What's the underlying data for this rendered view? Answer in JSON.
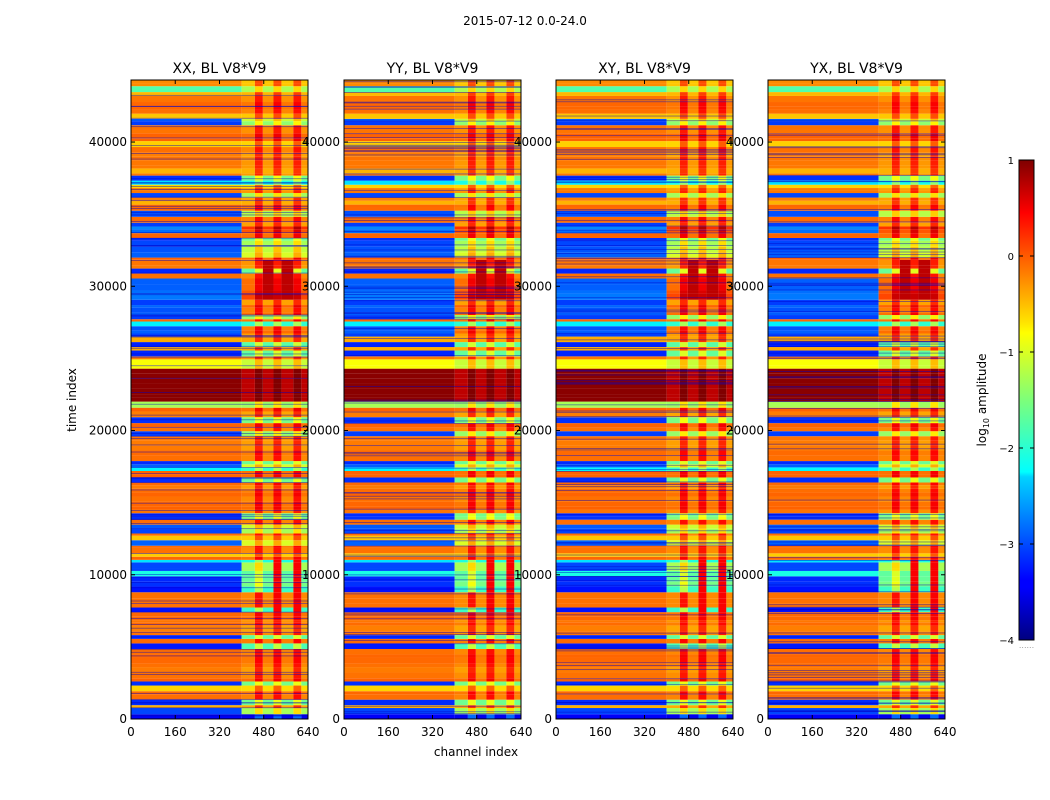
{
  "figure": {
    "suptitle": "2015-07-12 0.0-24.0",
    "xlabel": "channel index",
    "ylabel": "time index",
    "colorbar_label": "log10 amplitude",
    "colorbar_label_base": "log",
    "colorbar_label_sub": "10",
    "colorbar_label_rest": " amplitude",
    "colorbar_dots": "......"
  },
  "chart_data": {
    "type": "heatmap",
    "colormap": "jet",
    "panels": [
      {
        "title": "XX, BL V8*V9"
      },
      {
        "title": "YY, BL V8*V9"
      },
      {
        "title": "XY, BL V8*V9"
      },
      {
        "title": "YX, BL V8*V9"
      }
    ],
    "x_ticks": [
      0,
      160,
      320,
      480,
      640
    ],
    "x_tick_labels": [
      "0",
      "160",
      "320",
      "480",
      "640"
    ],
    "xlim": [
      0,
      640
    ],
    "y_ticks": [
      0,
      10000,
      20000,
      30000,
      40000
    ],
    "y_tick_labels": [
      "0",
      "10000",
      "20000",
      "30000",
      "40000"
    ],
    "ylim": [
      0,
      44300
    ],
    "colorbar": {
      "ticks": [
        1,
        0,
        -1,
        -2,
        -3,
        -4
      ],
      "tick_labels": [
        "1",
        "0",
        "−1",
        "−2",
        "−3",
        "−4"
      ],
      "range": [
        -4,
        1
      ]
    },
    "features": {
      "saturated_time_band": [
        21900,
        24100
      ],
      "bright_channel_block": [
        400,
        640
      ]
    }
  }
}
